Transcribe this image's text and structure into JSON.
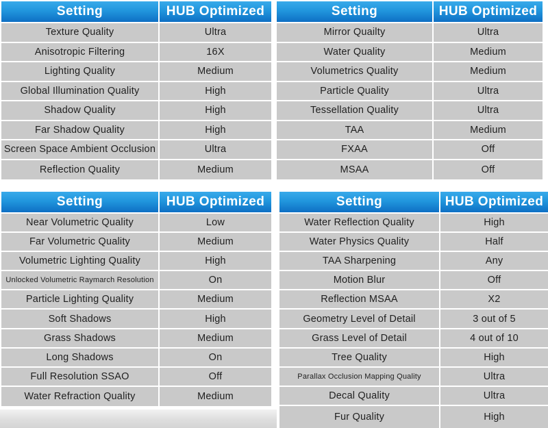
{
  "colors": {
    "header_gradient_top": "#38aaea",
    "header_gradient_bottom": "#0e6fc4",
    "header_text": "#ffffff",
    "row_background": "#c9c9c9",
    "row_text": "#1f1f1f",
    "separator": "#ffffff"
  },
  "chart_data": [
    {
      "type": "table",
      "position": "top-left",
      "columns": [
        "Setting",
        "HUB Optimized"
      ],
      "rows": [
        [
          "Texture Quality",
          "Ultra"
        ],
        [
          "Anisotropic Filtering",
          "16X"
        ],
        [
          "Lighting Quality",
          "Medium"
        ],
        [
          "Global Illumination Quality",
          "High"
        ],
        [
          "Shadow Quality",
          "High"
        ],
        [
          "Far Shadow Quality",
          "High"
        ],
        [
          "Screen Space Ambient Occlusion",
          "Ultra"
        ],
        [
          "Reflection Quality",
          "Medium"
        ]
      ]
    },
    {
      "type": "table",
      "position": "top-right",
      "columns": [
        "Setting",
        "HUB Optimized"
      ],
      "rows": [
        [
          "Mirror Quailty",
          "Ultra"
        ],
        [
          "Water Quality",
          "Medium"
        ],
        [
          "Volumetrics Quality",
          "Medium"
        ],
        [
          "Particle Quality",
          "Ultra"
        ],
        [
          "Tessellation Quality",
          "Ultra"
        ],
        [
          "TAA",
          "Medium"
        ],
        [
          "FXAA",
          "Off"
        ],
        [
          "MSAA",
          "Off"
        ]
      ]
    },
    {
      "type": "table",
      "position": "bottom-left",
      "columns": [
        "Setting",
        "HUB Optimized"
      ],
      "rows": [
        [
          "Near Volumetric Quality",
          "Low"
        ],
        [
          "Far Volumetric Quality",
          "Medium"
        ],
        [
          "Volumetric Lighting Quality",
          "High"
        ],
        [
          "Unlocked Volumetric Raymarch Resolution",
          "On"
        ],
        [
          "Particle Lighting Quality",
          "Medium"
        ],
        [
          "Soft Shadows",
          "High"
        ],
        [
          "Grass Shadows",
          "Medium"
        ],
        [
          "Long Shadows",
          "On"
        ],
        [
          "Full Resolution SSAO",
          "Off"
        ],
        [
          "Water Refraction Quality",
          "Medium"
        ]
      ]
    },
    {
      "type": "table",
      "position": "bottom-right",
      "columns": [
        "Setting",
        "HUB Optimized"
      ],
      "rows": [
        [
          "Water Reflection Quality",
          "High"
        ],
        [
          "Water Physics Quality",
          "Half"
        ],
        [
          "TAA Sharpening",
          "Any"
        ],
        [
          "Motion Blur",
          "Off"
        ],
        [
          "Reflection MSAA",
          "X2"
        ],
        [
          "Geometry Level of Detail",
          "3 out of 5"
        ],
        [
          "Grass Level of Detail",
          "4 out of 10"
        ],
        [
          "Tree Quality",
          "High"
        ],
        [
          "Parallax Occlusion Mapping Quality",
          "Ultra"
        ],
        [
          "Decal Quality",
          "Ultra"
        ],
        [
          "Fur Quality",
          "High"
        ]
      ]
    }
  ]
}
